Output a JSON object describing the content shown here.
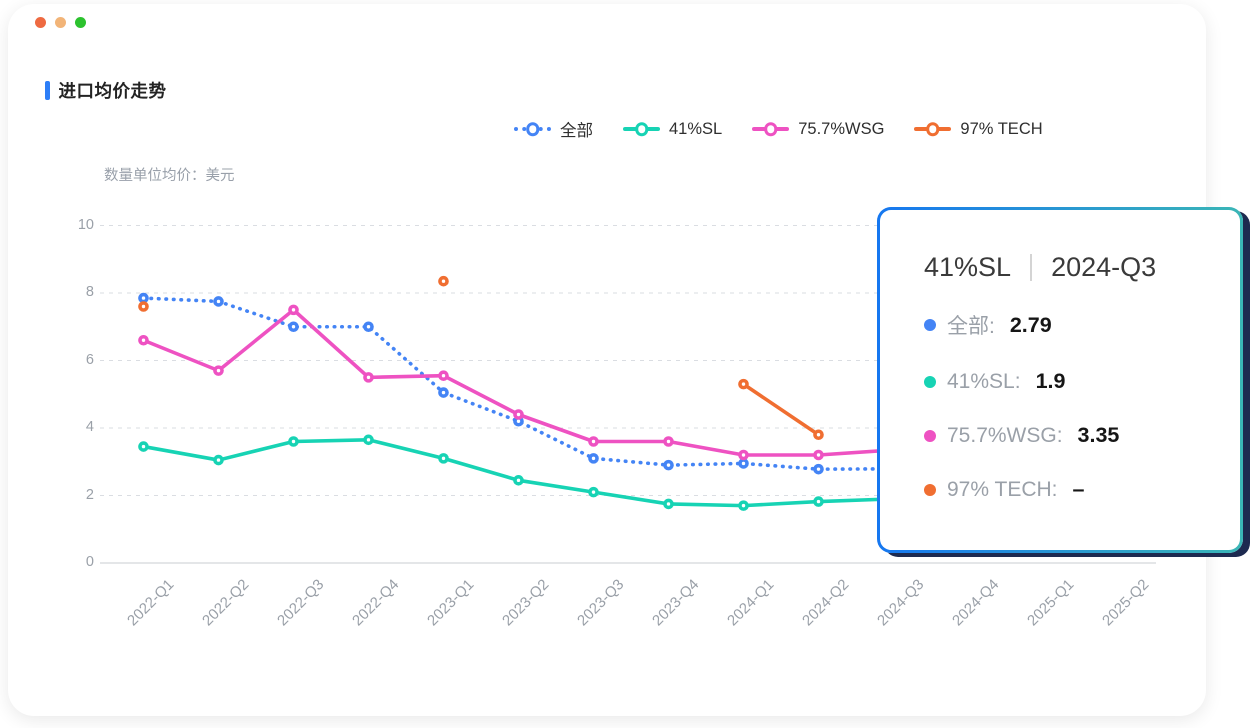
{
  "window": {
    "controls": [
      {
        "name": "close",
        "color": "#ee6a41"
      },
      {
        "name": "minimize",
        "color": "#f2b478"
      },
      {
        "name": "maximize",
        "color": "#2cc22e"
      }
    ]
  },
  "header": {
    "title": "进口均价走势",
    "accent_color": "#2d7ef7"
  },
  "legend": {
    "items": [
      {
        "label": "全部",
        "color": "#4484f5",
        "line_style": "dotted"
      },
      {
        "label": "41%SL",
        "color": "#17d3b4",
        "line_style": "solid"
      },
      {
        "label": "75.7%WSG",
        "color": "#ee52c2",
        "line_style": "solid"
      },
      {
        "label": "97% TECH",
        "color": "#f06e31",
        "line_style": "solid"
      }
    ]
  },
  "chart_data": {
    "type": "line",
    "title": "进口均价走势",
    "ylabel": "数量单位均价：美元",
    "ylim": [
      0,
      10
    ],
    "yticks": [
      0,
      2,
      4,
      6,
      8,
      10
    ],
    "grid": "dashed-horizontal",
    "legend_position": "top",
    "x": [
      "2022-Q1",
      "2022-Q2",
      "2022-Q3",
      "2022-Q4",
      "2023-Q1",
      "2023-Q2",
      "2023-Q3",
      "2023-Q4",
      "2024-Q1",
      "2024-Q2",
      "2024-Q3",
      "2024-Q4",
      "2025-Q1",
      "2025-Q2"
    ],
    "series": [
      {
        "name": "全部",
        "color": "#4484f5",
        "style": "dotted",
        "values": [
          7.85,
          7.75,
          7.0,
          7.0,
          5.05,
          4.2,
          3.1,
          2.9,
          2.95,
          2.78,
          2.79,
          null,
          null,
          null
        ]
      },
      {
        "name": "41%SL",
        "color": "#17d3b4",
        "style": "solid",
        "values": [
          3.45,
          3.05,
          3.6,
          3.65,
          3.1,
          2.45,
          2.1,
          1.75,
          1.7,
          1.82,
          1.9,
          null,
          null,
          null
        ]
      },
      {
        "name": "75.7%WSG",
        "color": "#ee52c2",
        "style": "solid",
        "values": [
          6.6,
          5.7,
          7.5,
          5.5,
          5.55,
          4.4,
          3.6,
          3.6,
          3.2,
          3.2,
          3.35,
          null,
          null,
          null
        ]
      },
      {
        "name": "97% TECH",
        "color": "#f06e31",
        "style": "solid",
        "values": [
          7.6,
          null,
          null,
          null,
          8.35,
          null,
          null,
          null,
          5.3,
          3.8,
          null,
          null,
          null,
          null
        ]
      }
    ]
  },
  "tooltip": {
    "series_name": "41%SL",
    "period": "2024-Q3",
    "rows": [
      {
        "label": "全部:",
        "value": "2.79",
        "color": "#4484f5"
      },
      {
        "label": "41%SL:",
        "value": "1.9",
        "color": "#17d3b4"
      },
      {
        "label": "75.7%WSG:",
        "value": "3.35",
        "color": "#ee52c2"
      },
      {
        "label": "97% TECH:",
        "value": "–",
        "color": "#f06e31"
      }
    ],
    "border_colors": [
      "#1677f0",
      "#3ab6b6"
    ],
    "shadow_color": "#1d2a50"
  }
}
